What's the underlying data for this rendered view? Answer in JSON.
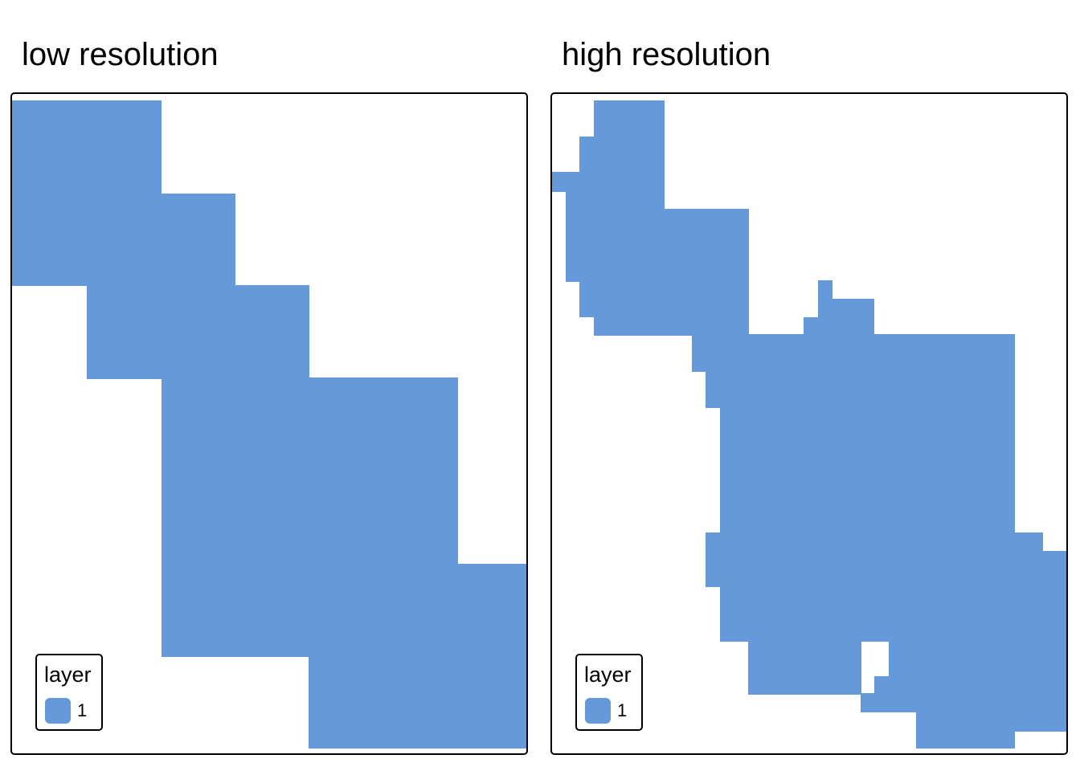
{
  "colors": {
    "fill": "#6699d9",
    "background": "#ffffff",
    "border": "#000000"
  },
  "panels": [
    {
      "title": "low resolution",
      "legend": {
        "title": "layer",
        "items": [
          {
            "label": "1",
            "color": "#6699d9"
          }
        ]
      }
    },
    {
      "title": "high resolution",
      "legend": {
        "title": "layer",
        "items": [
          {
            "label": "1",
            "color": "#6699d9"
          }
        ]
      }
    }
  ]
}
